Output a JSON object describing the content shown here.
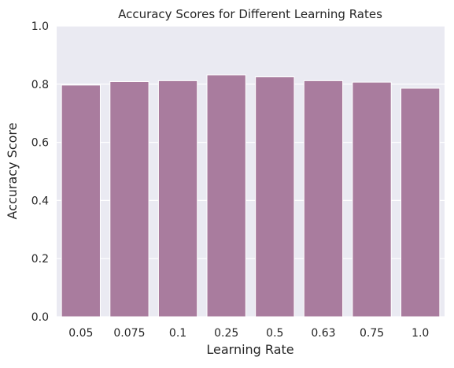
{
  "chart_data": {
    "type": "bar",
    "title": "Accuracy Scores for Different Learning Rates",
    "xlabel": "Learning Rate",
    "ylabel": "Accuracy Score",
    "categories": [
      "0.05",
      "0.075",
      "0.1",
      "0.25",
      "0.5",
      "0.63",
      "0.75",
      "1.0"
    ],
    "values": [
      0.797,
      0.809,
      0.812,
      0.832,
      0.825,
      0.812,
      0.807,
      0.786
    ],
    "ylim": [
      0,
      1.0
    ],
    "yticks": [
      "0.0",
      "0.2",
      "0.4",
      "0.6",
      "0.8",
      "1.0"
    ],
    "grid": true,
    "colors": {
      "bar": "#a97c9e",
      "background": "#eaeaf2",
      "grid": "#ffffff"
    }
  }
}
